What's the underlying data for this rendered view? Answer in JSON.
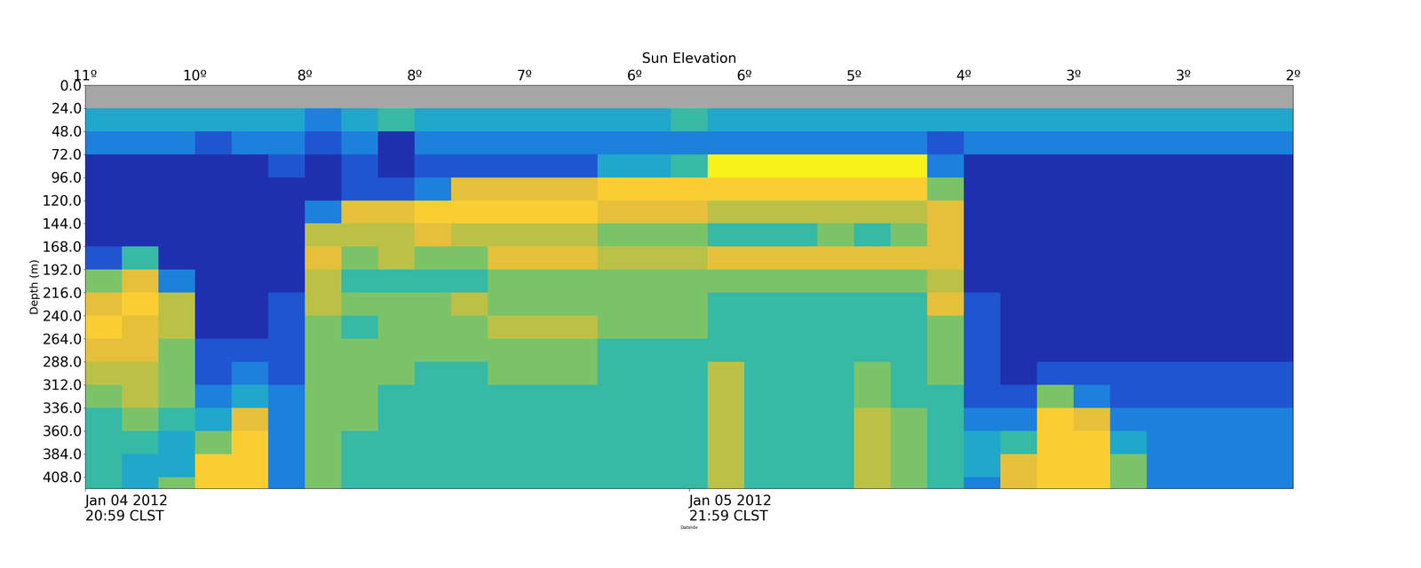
{
  "chart_data": {
    "type": "heatmap",
    "title": "Sun Elevation",
    "y_label": "Depth (m)",
    "x_label": "DateIdx",
    "xlim": [
      0,
      33
    ],
    "ylim": [
      420,
      0
    ],
    "x_edges": [
      0,
      1,
      2,
      3,
      4,
      5,
      6,
      7,
      8,
      9,
      10,
      11,
      12,
      13,
      14,
      15,
      16,
      17,
      18,
      19,
      20,
      21,
      22,
      23,
      24,
      25,
      26,
      27,
      28,
      29,
      30,
      31,
      32,
      33
    ],
    "depth_edges": [
      0,
      24,
      48,
      72,
      96,
      120,
      144,
      168,
      192,
      216,
      240,
      264,
      288,
      312,
      336,
      360,
      384,
      408,
      432
    ],
    "xticks": [
      {
        "value": 0,
        "label": "Jan 04 2012\n20:59 CLST"
      },
      {
        "value": 16.5,
        "label": "Jan 05 2012\n21:59 CLST"
      }
    ],
    "top_xticks": [
      {
        "value": 0,
        "label": "11º"
      },
      {
        "value": 3,
        "label": "10º"
      },
      {
        "value": 6,
        "label": "8º"
      },
      {
        "value": 9,
        "label": "8º"
      },
      {
        "value": 12,
        "label": "7º"
      },
      {
        "value": 15,
        "label": "6º"
      },
      {
        "value": 18,
        "label": "6º"
      },
      {
        "value": 21,
        "label": "5º"
      },
      {
        "value": 24,
        "label": "4º"
      },
      {
        "value": 27,
        "label": "3º"
      },
      {
        "value": 30,
        "label": "3º"
      },
      {
        "value": 33,
        "label": "2º"
      }
    ],
    "yticks": [
      {
        "value": 0,
        "label": "0.0"
      },
      {
        "value": 24,
        "label": "24.0"
      },
      {
        "value": 48,
        "label": "48.0"
      },
      {
        "value": 72,
        "label": "72.0"
      },
      {
        "value": 96,
        "label": "96.0"
      },
      {
        "value": 120,
        "label": "120.0"
      },
      {
        "value": 144,
        "label": "144.0"
      },
      {
        "value": 168,
        "label": "168.0"
      },
      {
        "value": 192,
        "label": "192.0"
      },
      {
        "value": 216,
        "label": "216.0"
      },
      {
        "value": 240,
        "label": "240.0"
      },
      {
        "value": 264,
        "label": "264.0"
      },
      {
        "value": 288,
        "label": "288.0"
      },
      {
        "value": 312,
        "label": "312.0"
      },
      {
        "value": 336,
        "label": "336.0"
      },
      {
        "value": 360,
        "label": "360.0"
      },
      {
        "value": 384,
        "label": "384.0"
      },
      {
        "value": 408,
        "label": "408.0"
      }
    ],
    "color_range": [
      0,
      10
    ],
    "cells_by_column": [
      [
        null,
        4,
        3,
        1,
        1,
        1,
        1,
        2,
        6,
        8,
        9,
        8,
        7,
        6,
        5,
        5,
        5,
        5
      ],
      [
        null,
        4,
        3,
        1,
        1,
        1,
        1,
        5,
        8,
        9,
        8,
        8,
        7,
        7,
        6,
        5,
        4,
        4
      ],
      [
        null,
        4,
        3,
        1,
        1,
        1,
        1,
        1,
        3,
        7,
        7,
        6,
        6,
        6,
        5,
        4,
        4,
        6
      ],
      [
        null,
        4,
        2,
        1,
        1,
        1,
        1,
        1,
        1,
        1,
        1,
        2,
        2,
        3,
        4,
        6,
        9,
        9
      ],
      [
        null,
        4,
        3,
        1,
        1,
        1,
        1,
        1,
        1,
        1,
        1,
        2,
        3,
        4,
        8,
        9,
        9,
        9
      ],
      [
        null,
        4,
        3,
        2,
        1,
        1,
        1,
        1,
        1,
        2,
        2,
        2,
        2,
        3,
        3,
        3,
        3,
        3
      ],
      [
        null,
        3,
        2,
        1,
        1,
        3,
        7,
        8,
        7,
        7,
        6,
        6,
        6,
        6,
        6,
        6,
        6,
        6
      ],
      [
        null,
        4,
        3,
        2,
        2,
        8,
        7,
        6,
        5,
        6,
        5,
        6,
        6,
        6,
        6,
        5,
        5,
        5
      ],
      [
        null,
        5,
        1,
        1,
        2,
        8,
        7,
        7,
        5,
        6,
        6,
        6,
        6,
        5,
        5,
        5,
        5,
        5
      ],
      [
        null,
        4,
        3,
        2,
        3,
        9,
        8,
        6,
        5,
        6,
        6,
        6,
        5,
        5,
        5,
        5,
        5,
        5
      ],
      [
        null,
        4,
        3,
        2,
        8,
        9,
        7,
        6,
        5,
        7,
        6,
        6,
        5,
        5,
        5,
        5,
        5,
        5
      ],
      [
        null,
        4,
        3,
        2,
        8,
        9,
        7,
        8,
        6,
        6,
        7,
        6,
        6,
        5,
        5,
        5,
        5,
        5
      ],
      [
        null,
        4,
        3,
        2,
        8,
        9,
        7,
        8,
        6,
        6,
        7,
        6,
        6,
        5,
        5,
        5,
        5,
        5
      ],
      [
        null,
        4,
        3,
        2,
        8,
        9,
        7,
        8,
        6,
        6,
        7,
        6,
        6,
        5,
        5,
        5,
        5,
        5
      ],
      [
        null,
        4,
        3,
        4,
        9,
        8,
        6,
        7,
        6,
        6,
        6,
        5,
        5,
        5,
        5,
        5,
        5,
        5
      ],
      [
        null,
        4,
        3,
        4,
        9,
        8,
        6,
        7,
        6,
        6,
        6,
        5,
        5,
        5,
        5,
        5,
        5,
        5
      ],
      [
        null,
        5,
        3,
        5,
        9,
        8,
        6,
        7,
        6,
        6,
        6,
        5,
        5,
        5,
        5,
        5,
        5,
        5
      ],
      [
        null,
        4,
        3,
        10,
        9,
        7,
        5,
        8,
        6,
        5,
        5,
        5,
        7,
        7,
        7,
        7,
        7,
        7
      ],
      [
        null,
        4,
        3,
        10,
        9,
        7,
        5,
        8,
        6,
        5,
        5,
        5,
        5,
        5,
        5,
        5,
        5,
        5
      ],
      [
        null,
        4,
        3,
        10,
        9,
        7,
        5,
        8,
        6,
        5,
        5,
        5,
        5,
        5,
        5,
        5,
        5,
        5
      ],
      [
        null,
        4,
        3,
        10,
        9,
        7,
        6,
        8,
        6,
        5,
        5,
        5,
        5,
        5,
        5,
        5,
        5,
        5
      ],
      [
        null,
        4,
        3,
        10,
        9,
        7,
        5,
        8,
        6,
        5,
        5,
        5,
        6,
        6,
        7,
        7,
        7,
        7
      ],
      [
        null,
        4,
        3,
        10,
        9,
        7,
        6,
        8,
        6,
        5,
        5,
        5,
        5,
        5,
        6,
        6,
        6,
        6
      ],
      [
        null,
        4,
        2,
        3,
        6,
        8,
        8,
        8,
        7,
        8,
        6,
        6,
        6,
        5,
        5,
        5,
        5,
        5
      ],
      [
        null,
        4,
        3,
        1,
        1,
        1,
        1,
        1,
        1,
        2,
        2,
        2,
        2,
        2,
        3,
        4,
        4,
        3
      ],
      [
        null,
        4,
        3,
        1,
        1,
        1,
        1,
        1,
        1,
        1,
        1,
        1,
        1,
        2,
        3,
        5,
        8,
        8
      ],
      [
        null,
        4,
        3,
        1,
        1,
        1,
        1,
        1,
        1,
        1,
        1,
        1,
        2,
        6,
        9,
        9,
        9,
        9
      ],
      [
        null,
        4,
        3,
        1,
        1,
        1,
        1,
        1,
        1,
        1,
        1,
        1,
        2,
        3,
        8,
        9,
        9,
        9
      ],
      [
        null,
        4,
        3,
        1,
        1,
        1,
        1,
        1,
        1,
        1,
        1,
        1,
        2,
        2,
        3,
        4,
        6,
        6
      ],
      [
        null,
        4,
        3,
        1,
        1,
        1,
        1,
        1,
        1,
        1,
        1,
        1,
        2,
        2,
        3,
        3,
        3,
        3
      ],
      [
        null,
        4,
        3,
        1,
        1,
        1,
        1,
        1,
        1,
        1,
        1,
        1,
        2,
        2,
        3,
        3,
        3,
        3
      ],
      [
        null,
        4,
        3,
        1,
        1,
        1,
        1,
        1,
        1,
        1,
        1,
        1,
        2,
        2,
        3,
        3,
        3,
        3
      ],
      [
        null,
        4,
        3,
        1,
        1,
        1,
        1,
        1,
        1,
        1,
        1,
        1,
        2,
        2,
        3,
        3,
        3,
        3
      ]
    ]
  }
}
